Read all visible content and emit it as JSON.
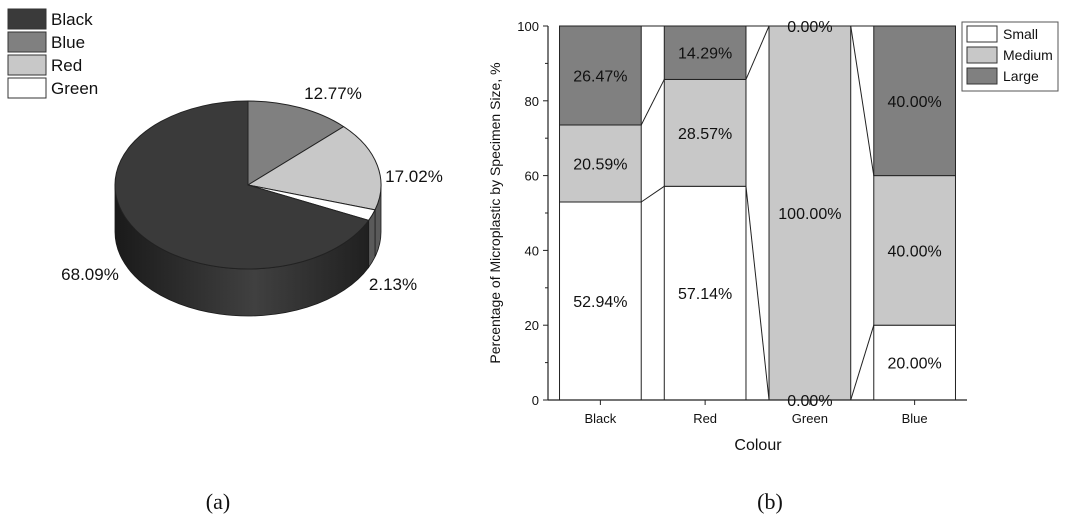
{
  "panel_labels": {
    "a": "(a)",
    "b": "(b)"
  },
  "chart_data": [
    {
      "type": "pie",
      "panel": "(a)",
      "categories": [
        "Black",
        "Blue",
        "Red",
        "Green"
      ],
      "values": [
        68.09,
        12.77,
        17.02,
        2.13
      ],
      "value_labels": [
        "68.09%",
        "12.77%",
        "17.02%",
        "2.13%"
      ],
      "colors": [
        "#3a3a3a",
        "#808080",
        "#c8c8c8",
        "#ffffff"
      ],
      "legend": {
        "placement": "top-left",
        "entries": [
          "Black",
          "Blue",
          "Red",
          "Green"
        ]
      }
    },
    {
      "type": "bar",
      "stacked": true,
      "panel": "(b)",
      "categories": [
        "Black",
        "Red",
        "Green",
        "Blue"
      ],
      "series": [
        {
          "name": "Small",
          "color": "#ffffff",
          "values": [
            52.94,
            57.14,
            0.0,
            20.0
          ],
          "labels": [
            "52.94%",
            "57.14%",
            "0.00%",
            "20.00%"
          ]
        },
        {
          "name": "Medium",
          "color": "#c8c8c8",
          "values": [
            20.59,
            28.57,
            100.0,
            40.0
          ],
          "labels": [
            "20.59%",
            "28.57%",
            "100.00%",
            "40.00%"
          ]
        },
        {
          "name": "Large",
          "color": "#808080",
          "values": [
            26.47,
            14.29,
            0.0,
            40.0
          ],
          "labels": [
            "26.47%",
            "14.29%",
            "0.00%",
            "40.00%"
          ]
        }
      ],
      "xlabel": "Colour",
      "ylabel": "Percentage of Microplastic by Specimen Size, %",
      "ylim": [
        0,
        100
      ],
      "yticks": [
        "0",
        "20",
        "40",
        "60",
        "80",
        "100"
      ],
      "connector_lines": true,
      "grid": false,
      "legend": {
        "placement": "top-right",
        "entries": [
          "Small",
          "Medium",
          "Large"
        ]
      }
    }
  ]
}
